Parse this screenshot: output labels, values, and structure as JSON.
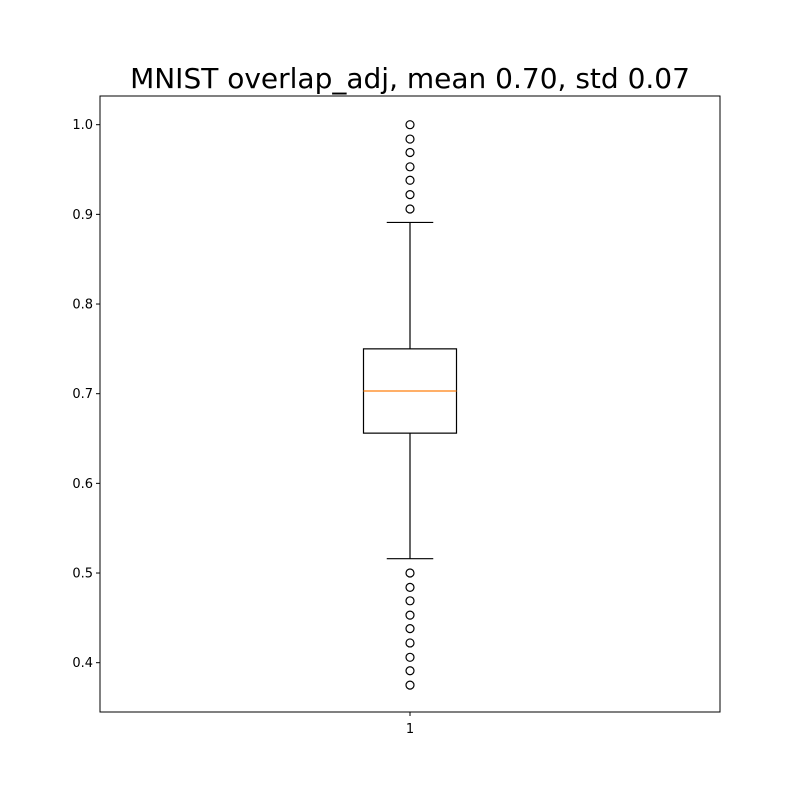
{
  "chart_data": {
    "type": "box",
    "title": "MNIST overlap_adj, mean 0.70, std 0.07",
    "xlabel": "",
    "ylabel": "",
    "categories": [
      "1"
    ],
    "ylim": [
      0.345,
      1.032
    ],
    "yticks": [
      0.4,
      0.5,
      0.6,
      0.7,
      0.8,
      0.9,
      1.0
    ],
    "ytick_labels": [
      "0.4",
      "0.5",
      "0.6",
      "0.7",
      "0.8",
      "0.9",
      "1.0"
    ],
    "grid": false,
    "boxes": [
      {
        "category": "1",
        "whisker_low": 0.516,
        "q1": 0.656,
        "median": 0.703,
        "q3": 0.75,
        "whisker_high": 0.891,
        "outliers": [
          1.0,
          0.984,
          0.969,
          0.953,
          0.938,
          0.922,
          0.906,
          0.5,
          0.484,
          0.469,
          0.453,
          0.438,
          0.422,
          0.406,
          0.391,
          0.375
        ]
      }
    ],
    "colors": {
      "box": "#000000",
      "median": "#ff7f0e",
      "outlier": "#000000"
    }
  }
}
